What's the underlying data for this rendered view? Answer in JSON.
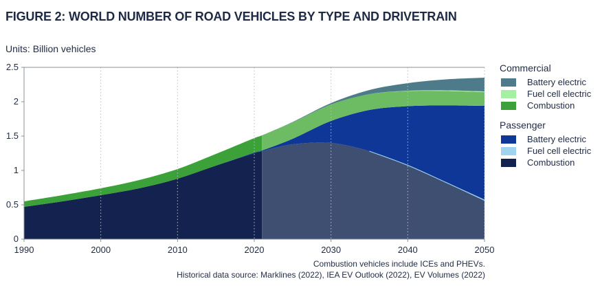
{
  "figure": {
    "title": "FIGURE 2: WORLD NUMBER OF ROAD VEHICLES BY TYPE AND DRIVETRAIN",
    "units_prefix": "Units:",
    "units_value": "Billion vehicles",
    "footnote": "Combustion vehicles include ICEs and PHEVs.",
    "source": "Historical data source: Marklines (2022), IEA EV Outlook (2022), EV Volumes (2022)"
  },
  "colors": {
    "passenger_combustion": "#142250",
    "passenger_combustion_forecast": "#3e4f72",
    "passenger_fuel_cell": "#9fd3ef",
    "passenger_battery": "#0e3797",
    "commercial_combustion": "#3ba138",
    "commercial_combustion_forecast": "#6dbb63",
    "commercial_fuel_cell": "#a6f0a4",
    "commercial_battery": "#4e7b89",
    "axis": "#8a8f98",
    "grid_dotted": "#b8bcc4",
    "text": "#1f2a44"
  },
  "chart_data": {
    "type": "area",
    "stacked": true,
    "x": [
      1990,
      1995,
      2000,
      2005,
      2010,
      2015,
      2020,
      2021,
      2025,
      2030,
      2035,
      2040,
      2045,
      2050
    ],
    "xlim": [
      1990,
      2050
    ],
    "ylim": [
      0,
      2.5
    ],
    "x_ticks": [
      1990,
      2000,
      2010,
      2020,
      2030,
      2040,
      2050
    ],
    "y_ticks": [
      0,
      0.5,
      1,
      1.5,
      2,
      2.5
    ],
    "y_tick_labels": [
      "0",
      "0.5",
      "1",
      "1.5",
      "2",
      "2.5"
    ],
    "xlabel": "",
    "ylabel": "",
    "history_end": 2021,
    "grid": "dotted vertical at x ticks, solid horizontal at 2.5",
    "legend_placement": "right",
    "series": [
      {
        "name": "Combustion",
        "group": "Passenger",
        "values": [
          0.47,
          0.55,
          0.64,
          0.74,
          0.88,
          1.07,
          1.25,
          1.28,
          1.38,
          1.4,
          1.28,
          1.07,
          0.82,
          0.56
        ]
      },
      {
        "name": "Fuel cell electric",
        "group": "Passenger",
        "values": [
          0,
          0,
          0,
          0,
          0,
          0,
          0,
          0,
          0,
          0,
          0,
          0.005,
          0.005,
          0.01
        ]
      },
      {
        "name": "Battery electric",
        "group": "Passenger",
        "values": [
          0,
          0,
          0,
          0,
          0,
          0,
          0.01,
          0.01,
          0.08,
          0.32,
          0.6,
          0.86,
          1.12,
          1.37
        ]
      },
      {
        "name": "Combustion",
        "group": "Commercial",
        "values": [
          0.08,
          0.09,
          0.1,
          0.12,
          0.14,
          0.17,
          0.21,
          0.22,
          0.24,
          0.24,
          0.23,
          0.22,
          0.21,
          0.2
        ]
      },
      {
        "name": "Fuel cell electric",
        "group": "Commercial",
        "values": [
          0,
          0,
          0,
          0,
          0,
          0,
          0,
          0,
          0,
          0,
          0,
          0.005,
          0.01,
          0.01
        ]
      },
      {
        "name": "Battery electric",
        "group": "Commercial",
        "values": [
          0,
          0,
          0,
          0,
          0,
          0,
          0,
          0,
          0.005,
          0.02,
          0.06,
          0.11,
          0.16,
          0.2
        ]
      }
    ],
    "legend": [
      {
        "heading": "Commercial",
        "items": [
          {
            "label": "Battery electric",
            "color_key": "commercial_battery"
          },
          {
            "label": "Fuel cell electric",
            "color_key": "commercial_fuel_cell"
          },
          {
            "label": "Combustion",
            "color_key": "commercial_combustion"
          }
        ]
      },
      {
        "heading": "Passenger",
        "items": [
          {
            "label": "Battery electric",
            "color_key": "passenger_battery"
          },
          {
            "label": "Fuel cell electric",
            "color_key": "passenger_fuel_cell"
          },
          {
            "label": "Combustion",
            "color_key": "passenger_combustion"
          }
        ]
      }
    ]
  }
}
